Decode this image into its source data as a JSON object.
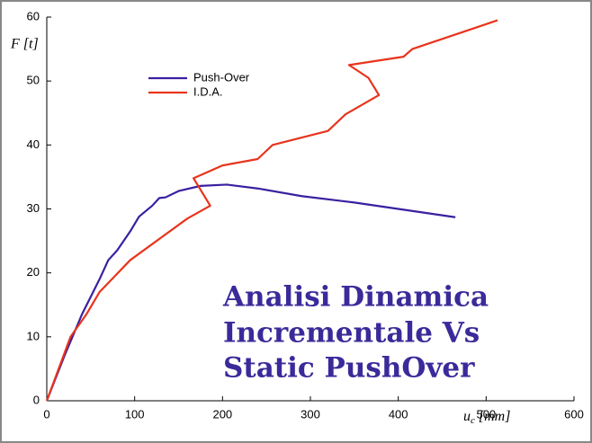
{
  "chart_data": {
    "type": "line",
    "y_label": "F [t]",
    "x_label": {
      "symbol": "u",
      "subscript": "c",
      "unit": "[mm]"
    },
    "annotation": [
      "Analisi Dinamica",
      "Incrementale Vs",
      "Static PushOver"
    ],
    "xlim": [
      0,
      600
    ],
    "xticks": [
      0,
      100,
      200,
      300,
      400,
      500,
      600
    ],
    "ylim": [
      0,
      60
    ],
    "yticks": [
      0,
      10,
      20,
      30,
      40,
      50,
      60
    ],
    "grid": false,
    "legend": "upper left",
    "series": [
      {
        "name": "Push-Over",
        "color": "#3a20a0",
        "x": [
          0,
          20,
          40,
          60,
          70,
          80,
          95,
          105,
          120,
          128,
          135,
          150,
          175,
          205,
          240,
          290,
          350,
          400,
          465
        ],
        "values": [
          0,
          7,
          13.5,
          19,
          22,
          23.5,
          26.5,
          28.8,
          30.5,
          31.7,
          31.8,
          32.8,
          33.6,
          33.8,
          33.2,
          32,
          31,
          30,
          28.7
        ]
      },
      {
        "name": "I.D.A.",
        "color": "#e8341c",
        "x": [
          0,
          27,
          45,
          60,
          95,
          160,
          186,
          167,
          200,
          240,
          257,
          320,
          340,
          378,
          366,
          344,
          406,
          416,
          513
        ],
        "values": [
          0,
          10,
          13.5,
          17,
          22,
          28.5,
          30.5,
          34.8,
          36.8,
          37.8,
          40,
          42.2,
          44.8,
          47.8,
          50.5,
          52.5,
          53.8,
          55,
          59.5
        ]
      }
    ]
  }
}
